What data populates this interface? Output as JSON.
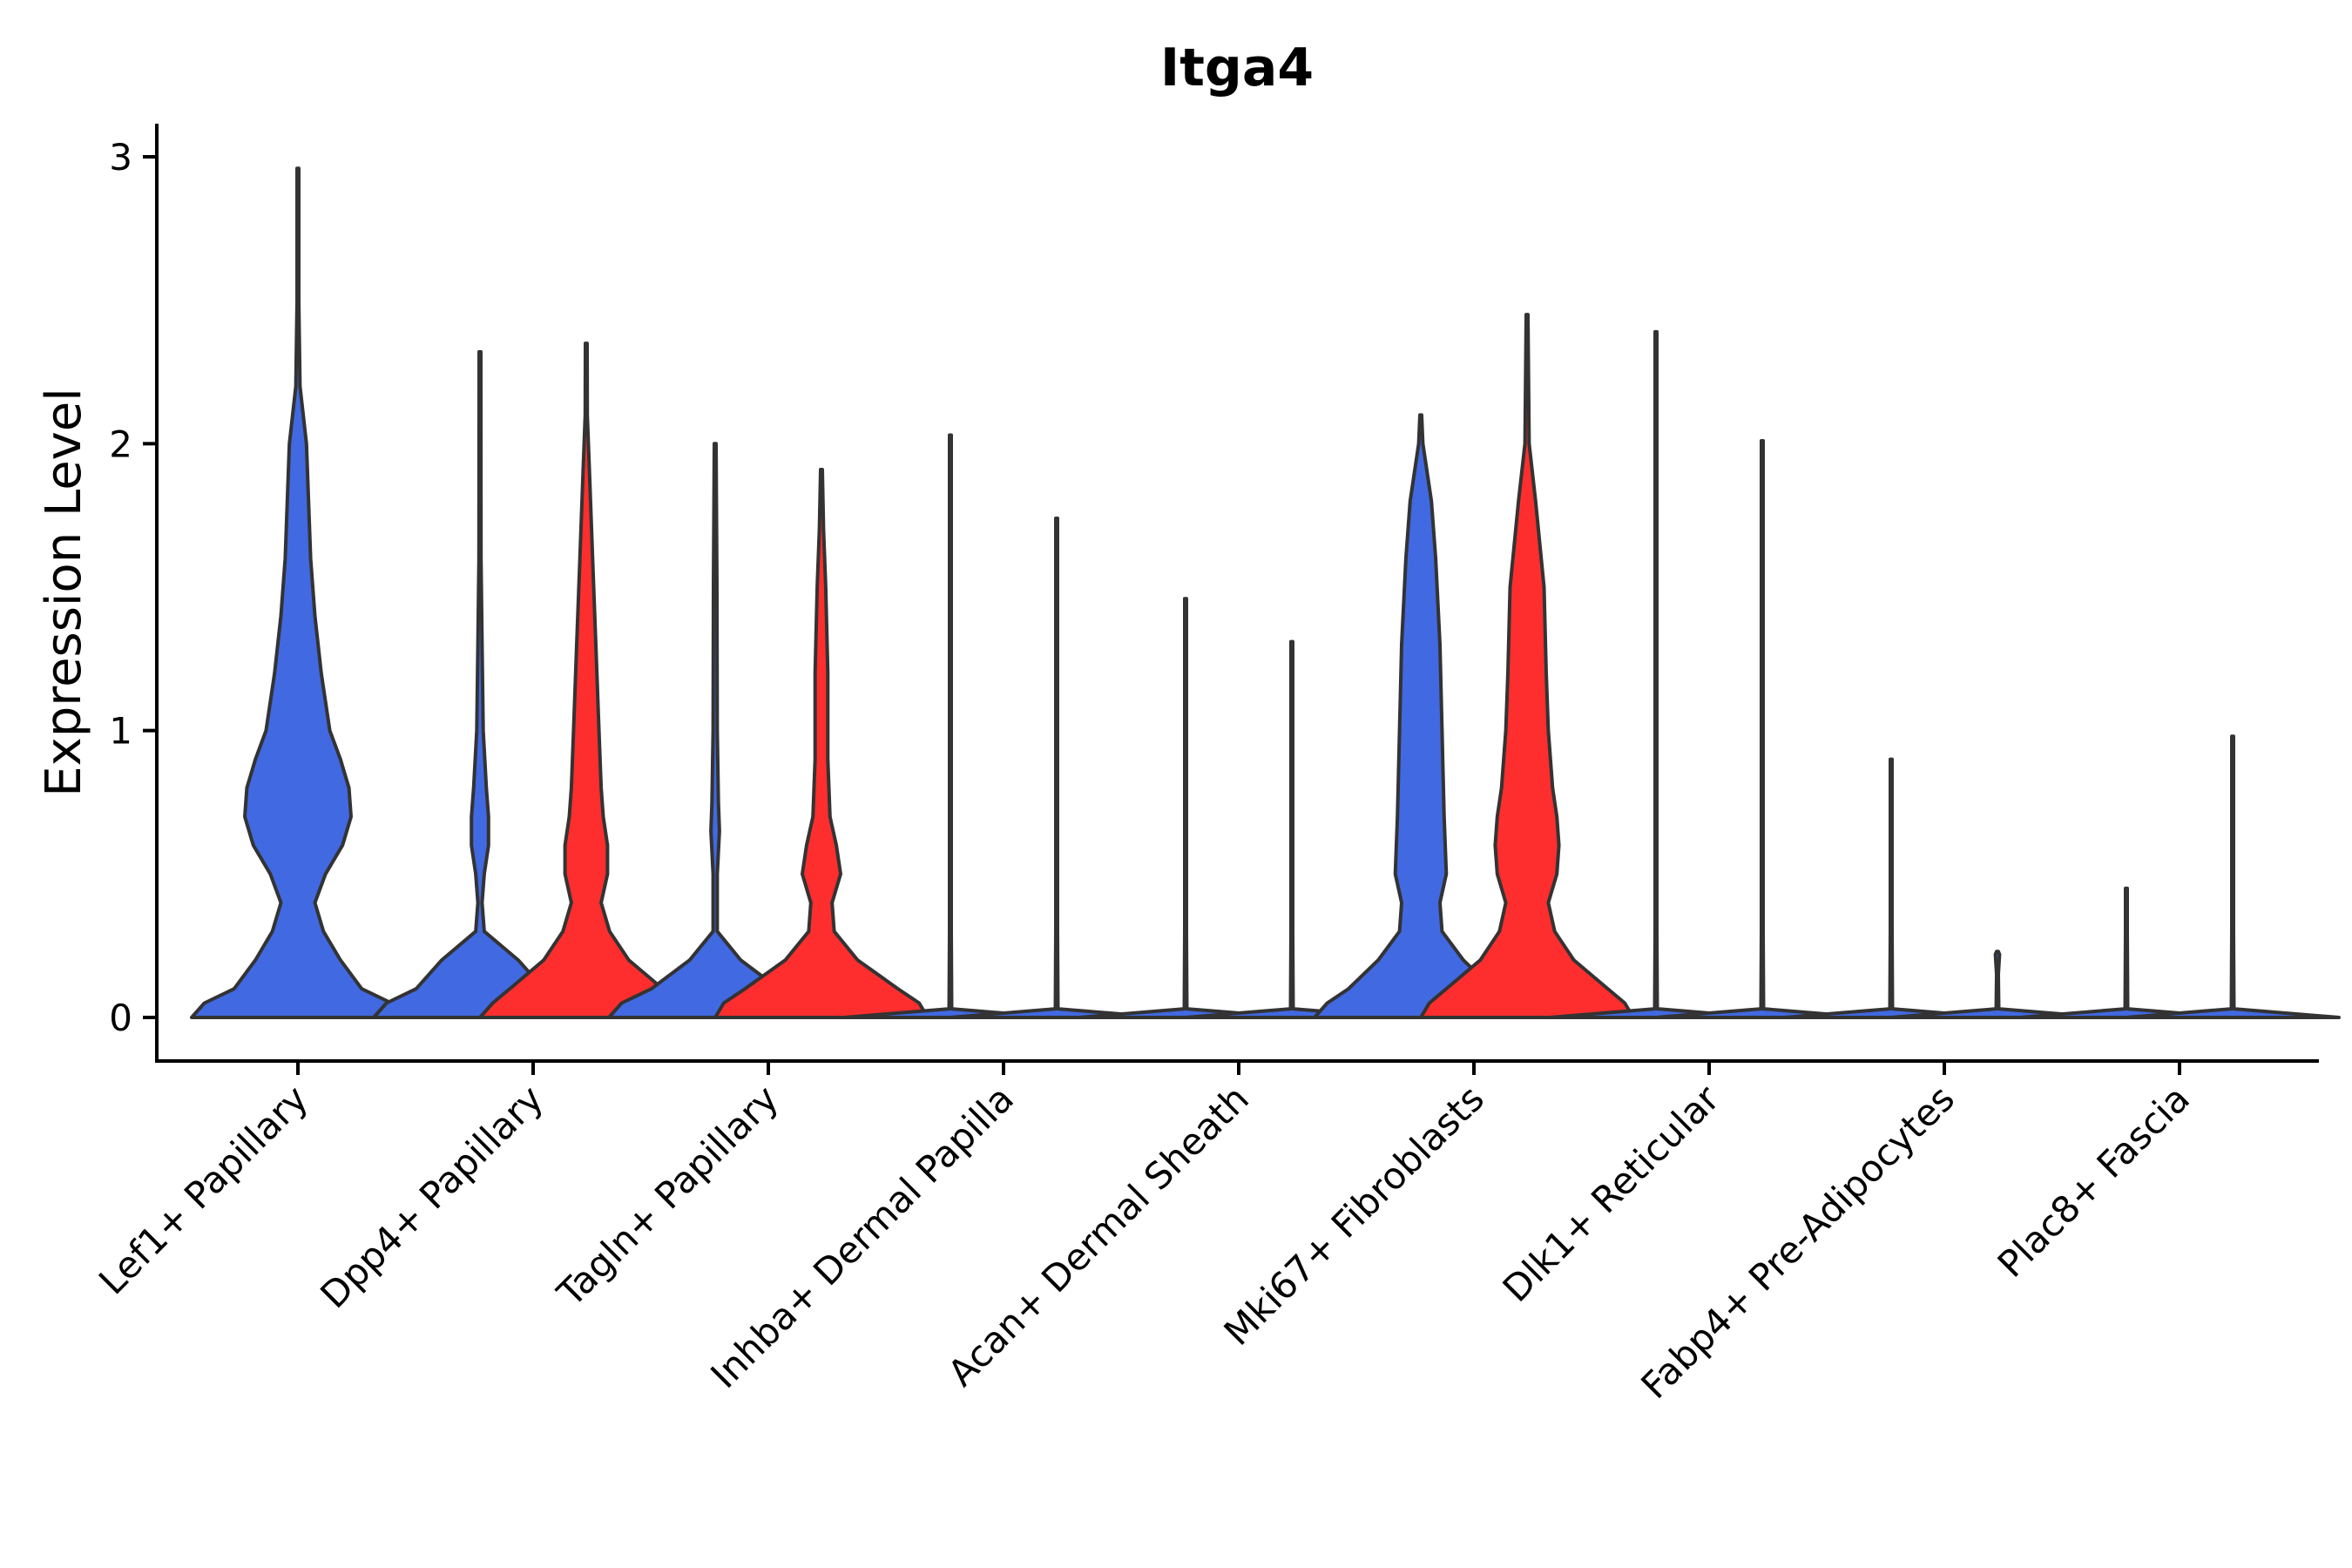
{
  "chart_data": {
    "type": "violin",
    "title": "Itga4",
    "xlabel": "",
    "ylabel": "Expression Level",
    "ylim": [
      -0.15,
      3.12
    ],
    "yticks": [
      0,
      1,
      2,
      3
    ],
    "categories": [
      "Lef1+ Papillary",
      "Dpp4+ Papillary",
      "Tagln+ Papillary",
      "Inhba+ Dermal Papilla",
      "Acan+ Dermal Sheath",
      "Mki67+ Fibroblasts",
      "Dlk1+ Reticular",
      "Fabp4+ Pre-Adipocytes",
      "Plac8+ Fascia"
    ],
    "colors": {
      "blue": "#4169E1",
      "red": "#FF2E2E",
      "outline": "#333333"
    },
    "violins": [
      {
        "category": 0,
        "offset": 0,
        "color": "#4169E1",
        "max": 2.96,
        "profile": [
          [
            0,
            0.5
          ],
          [
            0.05,
            0.44
          ],
          [
            0.1,
            0.3
          ],
          [
            0.2,
            0.2
          ],
          [
            0.3,
            0.12
          ],
          [
            0.4,
            0.08
          ],
          [
            0.5,
            0.13
          ],
          [
            0.6,
            0.21
          ],
          [
            0.7,
            0.25
          ],
          [
            0.8,
            0.24
          ],
          [
            0.9,
            0.2
          ],
          [
            1.0,
            0.15
          ],
          [
            1.2,
            0.11
          ],
          [
            1.4,
            0.08
          ],
          [
            1.6,
            0.06
          ],
          [
            1.8,
            0.05
          ],
          [
            2.0,
            0.04
          ],
          [
            2.2,
            0.01
          ],
          [
            2.5,
            0.004
          ],
          [
            2.96,
            0.004
          ]
        ]
      },
      {
        "category": 1,
        "offset": -1,
        "color": "#4169E1",
        "max": 2.32,
        "profile": [
          [
            0,
            0.5
          ],
          [
            0.05,
            0.44
          ],
          [
            0.1,
            0.3
          ],
          [
            0.2,
            0.18
          ],
          [
            0.3,
            0.02
          ],
          [
            0.4,
            0.01
          ],
          [
            0.5,
            0.02
          ],
          [
            0.6,
            0.04
          ],
          [
            0.7,
            0.04
          ],
          [
            0.8,
            0.03
          ],
          [
            1.0,
            0.015
          ],
          [
            1.3,
            0.01
          ],
          [
            1.6,
            0.005
          ],
          [
            2.32,
            0.004
          ]
        ]
      },
      {
        "category": 1,
        "offset": 1,
        "color": "#FF2E2E",
        "max": 2.35,
        "profile": [
          [
            0,
            0.5
          ],
          [
            0.05,
            0.44
          ],
          [
            0.1,
            0.36
          ],
          [
            0.2,
            0.2
          ],
          [
            0.3,
            0.11
          ],
          [
            0.4,
            0.07
          ],
          [
            0.5,
            0.1
          ],
          [
            0.6,
            0.1
          ],
          [
            0.7,
            0.08
          ],
          [
            0.8,
            0.07
          ],
          [
            1.0,
            0.06
          ],
          [
            1.3,
            0.045
          ],
          [
            1.6,
            0.03
          ],
          [
            1.9,
            0.015
          ],
          [
            2.1,
            0.005
          ],
          [
            2.35,
            0.004
          ]
        ]
      },
      {
        "category": 2,
        "offset": -1,
        "color": "#4169E1",
        "max": 2.0,
        "profile": [
          [
            0,
            0.5
          ],
          [
            0.05,
            0.44
          ],
          [
            0.1,
            0.3
          ],
          [
            0.2,
            0.12
          ],
          [
            0.3,
            0.01
          ],
          [
            0.5,
            0.01
          ],
          [
            0.65,
            0.02
          ],
          [
            0.75,
            0.015
          ],
          [
            1.0,
            0.01
          ],
          [
            1.5,
            0.008
          ],
          [
            2.0,
            0.004
          ]
        ]
      },
      {
        "category": 2,
        "offset": 1,
        "color": "#FF2E2E",
        "max": 1.91,
        "profile": [
          [
            0,
            0.5
          ],
          [
            0.05,
            0.46
          ],
          [
            0.1,
            0.36
          ],
          [
            0.2,
            0.17
          ],
          [
            0.3,
            0.06
          ],
          [
            0.4,
            0.05
          ],
          [
            0.5,
            0.09
          ],
          [
            0.6,
            0.07
          ],
          [
            0.7,
            0.04
          ],
          [
            0.9,
            0.03
          ],
          [
            1.2,
            0.03
          ],
          [
            1.5,
            0.02
          ],
          [
            1.7,
            0.01
          ],
          [
            1.91,
            0.004
          ]
        ]
      },
      {
        "category": 3,
        "offset": -1,
        "color": "#4169E1",
        "max": 2.03,
        "profile": [
          [
            0,
            0.5
          ],
          [
            0.03,
            0.006
          ],
          [
            0.3,
            0.004
          ],
          [
            2.03,
            0.004
          ]
        ]
      },
      {
        "category": 3,
        "offset": 1,
        "color": "#4169E1",
        "max": 1.74,
        "profile": [
          [
            0,
            0.5
          ],
          [
            0.03,
            0.006
          ],
          [
            0.3,
            0.004
          ],
          [
            1.74,
            0.004
          ]
        ]
      },
      {
        "category": 4,
        "offset": -1,
        "color": "#4169E1",
        "max": 1.46,
        "profile": [
          [
            0,
            0.5
          ],
          [
            0.03,
            0.006
          ],
          [
            0.3,
            0.004
          ],
          [
            1.46,
            0.004
          ]
        ]
      },
      {
        "category": 4,
        "offset": 1,
        "color": "#4169E1",
        "max": 1.31,
        "profile": [
          [
            0,
            0.5
          ],
          [
            0.03,
            0.006
          ],
          [
            0.3,
            0.004
          ],
          [
            1.31,
            0.004
          ]
        ]
      },
      {
        "category": 5,
        "offset": -1,
        "color": "#4169E1",
        "max": 2.1,
        "profile": [
          [
            0,
            0.5
          ],
          [
            0.05,
            0.44
          ],
          [
            0.1,
            0.34
          ],
          [
            0.2,
            0.2
          ],
          [
            0.3,
            0.1
          ],
          [
            0.4,
            0.09
          ],
          [
            0.5,
            0.12
          ],
          [
            0.7,
            0.11
          ],
          [
            1.0,
            0.1
          ],
          [
            1.3,
            0.09
          ],
          [
            1.6,
            0.07
          ],
          [
            1.8,
            0.05
          ],
          [
            2.0,
            0.01
          ],
          [
            2.1,
            0.004
          ]
        ]
      },
      {
        "category": 5,
        "offset": 1,
        "color": "#FF2E2E",
        "max": 2.45,
        "profile": [
          [
            0,
            0.5
          ],
          [
            0.05,
            0.46
          ],
          [
            0.1,
            0.38
          ],
          [
            0.2,
            0.22
          ],
          [
            0.3,
            0.13
          ],
          [
            0.4,
            0.1
          ],
          [
            0.5,
            0.14
          ],
          [
            0.6,
            0.15
          ],
          [
            0.7,
            0.14
          ],
          [
            0.8,
            0.12
          ],
          [
            1.0,
            0.1
          ],
          [
            1.2,
            0.09
          ],
          [
            1.5,
            0.08
          ],
          [
            1.8,
            0.04
          ],
          [
            2.0,
            0.01
          ],
          [
            2.45,
            0.004
          ]
        ]
      },
      {
        "category": 6,
        "offset": -1,
        "color": "#4169E1",
        "max": 2.39,
        "profile": [
          [
            0,
            0.5
          ],
          [
            0.03,
            0.006
          ],
          [
            0.3,
            0.004
          ],
          [
            2.39,
            0.004
          ]
        ]
      },
      {
        "category": 6,
        "offset": 1,
        "color": "#4169E1",
        "max": 2.01,
        "profile": [
          [
            0,
            0.5
          ],
          [
            0.03,
            0.006
          ],
          [
            0.3,
            0.004
          ],
          [
            2.01,
            0.004
          ]
        ]
      },
      {
        "category": 7,
        "offset": -1,
        "color": "#4169E1",
        "max": 0.9,
        "profile": [
          [
            0,
            0.5
          ],
          [
            0.03,
            0.006
          ],
          [
            0.3,
            0.004
          ],
          [
            0.9,
            0.004
          ]
        ]
      },
      {
        "category": 7,
        "offset": 1,
        "color": "#4169E1",
        "max": 0.23,
        "profile": [
          [
            0,
            0.5
          ],
          [
            0.03,
            0.006
          ],
          [
            0.15,
            0.004
          ],
          [
            0.22,
            0.01
          ],
          [
            0.23,
            0.004
          ]
        ]
      },
      {
        "category": 8,
        "offset": -1,
        "color": "#4169E1",
        "max": 0.45,
        "profile": [
          [
            0,
            0.5
          ],
          [
            0.03,
            0.006
          ],
          [
            0.3,
            0.004
          ],
          [
            0.45,
            0.004
          ]
        ]
      },
      {
        "category": 8,
        "offset": 1,
        "color": "#4169E1",
        "max": 0.98,
        "profile": [
          [
            0,
            0.5
          ],
          [
            0.03,
            0.006
          ],
          [
            0.3,
            0.004
          ],
          [
            0.98,
            0.004
          ]
        ]
      }
    ]
  }
}
